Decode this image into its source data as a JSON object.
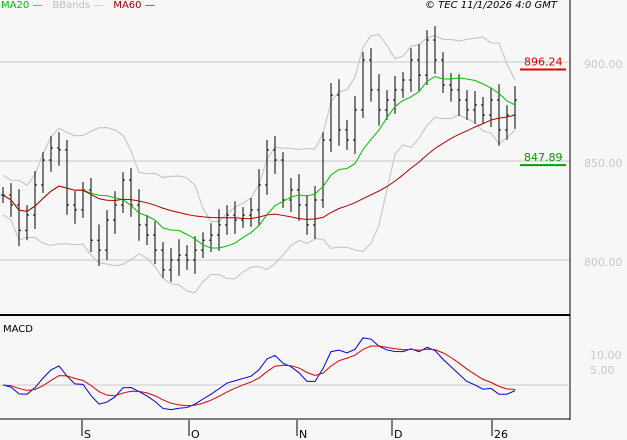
{
  "header": {
    "legend": [
      {
        "label": "MA20",
        "color": "#00c000"
      },
      {
        "label": "BBands",
        "color": "#c0c0c0"
      },
      {
        "label": "MA60",
        "color": "#a00000"
      }
    ],
    "copyright": "© TEC 11/1/2026 4:0 GMT"
  },
  "chart_data": [
    {
      "type": "line",
      "panel": "price",
      "series_style": "ohlc bars with MA20, MA60, Bollinger Bands",
      "x_ticks": [
        "S",
        "O",
        "N",
        "D",
        "26"
      ],
      "y_ticks": [
        "900.00",
        "850.00",
        "800.00"
      ],
      "ylim": [
        773,
        932
      ],
      "grid": true,
      "closes": [
        832.8,
        827.8,
        815,
        822.7,
        837.9,
        850.5,
        856.6,
        855.6,
        827.8,
        825.3,
        835.4,
        810,
        805,
        820.2,
        827.8,
        840.4,
        827.8,
        817.7,
        812.6,
        805,
        795,
        800,
        802.5,
        800,
        805,
        810,
        812.6,
        817.7,
        822.7,
        820.2,
        822.7,
        825.3,
        837.9,
        855.6,
        850.5,
        830.3,
        835.4,
        827.8,
        817.7,
        830.3,
        860.6,
        883.3,
        865.7,
        860.6,
        875.8,
        901,
        885.9,
        875.8,
        880.8,
        885.9,
        890.9,
        901,
        893.4,
        911.1,
        901,
        888.4,
        885.9,
        880.8,
        875.8,
        878.3,
        873.2,
        880.8,
        865.7,
        873.2,
        880.8
      ],
      "markers": [
        {
          "label": "896.24",
          "color": "#e00000"
        },
        {
          "label": "847.89",
          "color": "#00a000"
        }
      ]
    },
    {
      "type": "line",
      "panel": "MACD",
      "title": "MACD",
      "y_ticks": [
        "10.00",
        "5.00"
      ],
      "series_colors": {
        "macd": "#0000e0",
        "signal": "#e00000"
      }
    }
  ]
}
